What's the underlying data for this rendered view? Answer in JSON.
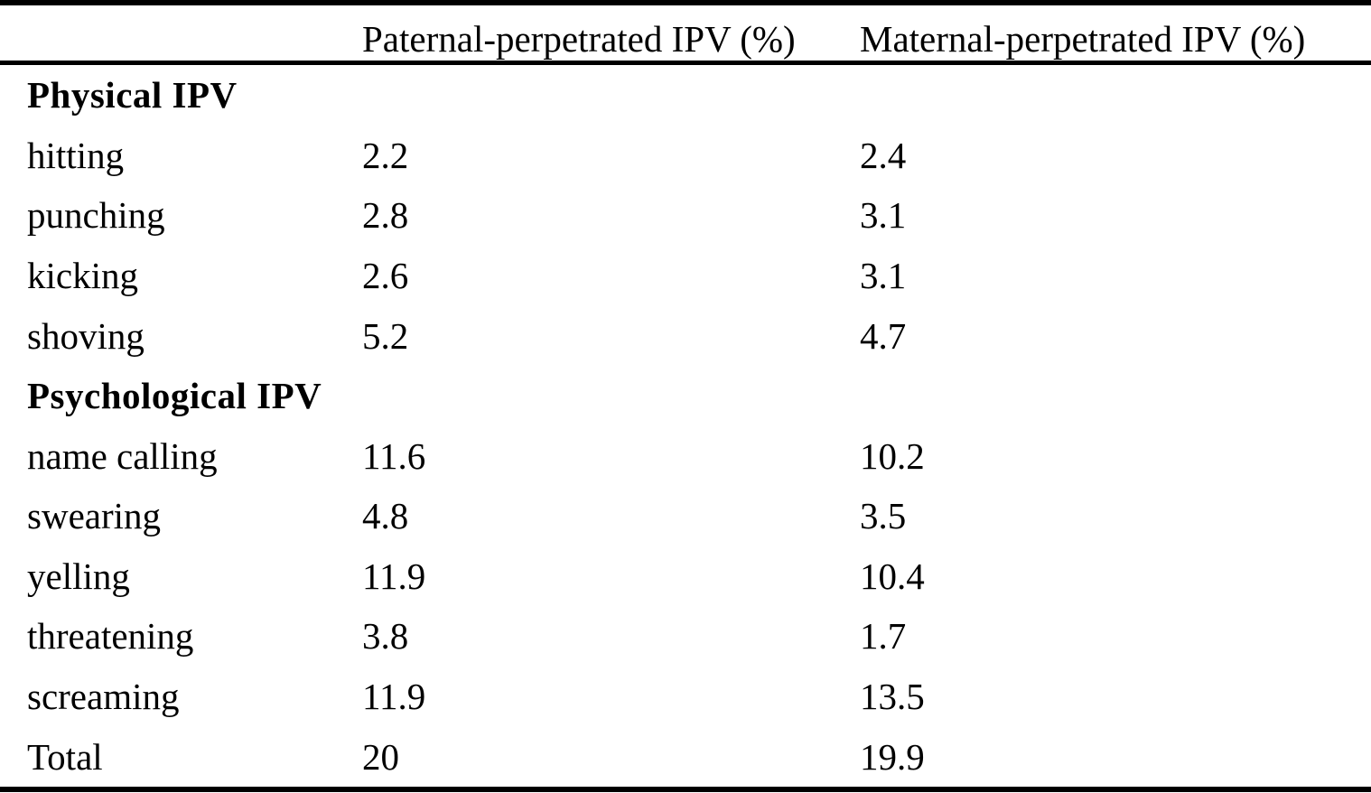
{
  "table": {
    "headers": {
      "row_label": "",
      "paternal": "Paternal-perpetrated IPV (%)",
      "maternal": "Maternal-perpetrated IPV (%)"
    },
    "sections": [
      {
        "title": "Physical IPV",
        "items": [
          "hitting",
          "punching",
          "kicking",
          "shoving"
        ]
      },
      {
        "title": "Psychological IPV",
        "items": [
          "name calling",
          "swearing",
          "yelling",
          "threatening",
          "screaming",
          "Total"
        ]
      }
    ],
    "rows": [
      {
        "type": "section",
        "label": "Physical IPV"
      },
      {
        "type": "data",
        "label": "hitting",
        "paternal": "2.2",
        "maternal": "2.4"
      },
      {
        "type": "data",
        "label": "punching",
        "paternal": "2.8",
        "maternal": "3.1"
      },
      {
        "type": "data",
        "label": "kicking",
        "paternal": "2.6",
        "maternal": "3.1"
      },
      {
        "type": "data",
        "label": "shoving",
        "paternal": "5.2",
        "maternal": "4.7"
      },
      {
        "type": "section",
        "label": "Psychological IPV"
      },
      {
        "type": "data",
        "label": "name calling",
        "paternal": "11.6",
        "maternal": "10.2"
      },
      {
        "type": "data",
        "label": "swearing",
        "paternal": "4.8",
        "maternal": "3.5"
      },
      {
        "type": "data",
        "label": "yelling",
        "paternal": "11.9",
        "maternal": "10.4"
      },
      {
        "type": "data",
        "label": "threatening",
        "paternal": "3.8",
        "maternal": "1.7"
      },
      {
        "type": "data",
        "label": "screaming",
        "paternal": "11.9",
        "maternal": "13.5"
      },
      {
        "type": "data",
        "label": "Total",
        "paternal": "20",
        "maternal": "19.9"
      }
    ]
  },
  "colors": {
    "text": "#000000",
    "background": "#ffffff",
    "rule": "#000000"
  }
}
